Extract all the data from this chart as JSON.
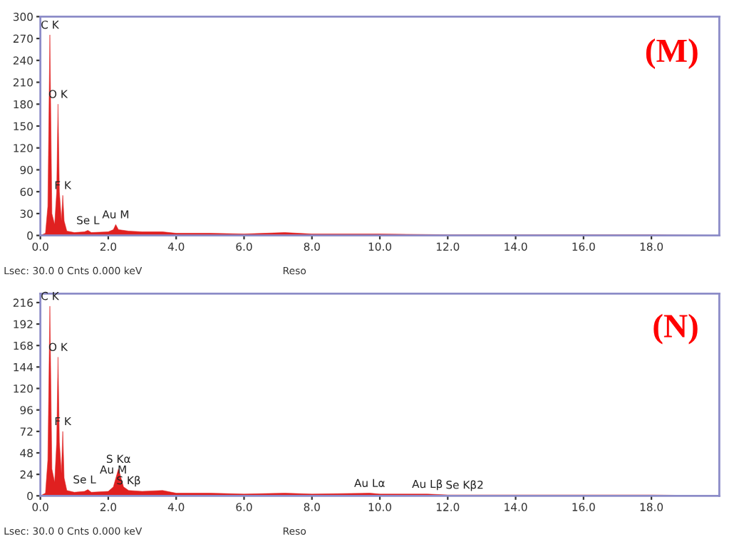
{
  "chart_data": [
    {
      "type": "area",
      "title": "(M)",
      "x": [
        0.0,
        0.15,
        0.22,
        0.28,
        0.34,
        0.42,
        0.48,
        0.52,
        0.56,
        0.62,
        0.66,
        0.7,
        0.78,
        1.0,
        1.3,
        1.4,
        1.5,
        2.0,
        2.15,
        2.22,
        2.3,
        2.6,
        3.0,
        3.6,
        4.0,
        5.0,
        6.0,
        7.2,
        8.0,
        10.0,
        12.0,
        14.0,
        16.0,
        18.0,
        20.0
      ],
      "series": [
        {
          "color": "#e02020",
          "values": [
            0,
            3,
            40,
            275,
            30,
            15,
            60,
            180,
            60,
            20,
            55,
            20,
            6,
            4,
            5,
            7,
            4,
            5,
            8,
            15,
            8,
            6,
            5,
            5,
            3,
            3,
            2,
            4,
            2,
            2,
            1,
            1,
            1,
            1,
            0
          ]
        }
      ],
      "xlim": [
        0,
        20
      ],
      "ylim": [
        0,
        300
      ],
      "xticks": [
        {
          "value": 0,
          "label": "0.0"
        },
        {
          "value": 2,
          "label": "2.0"
        },
        {
          "value": 4,
          "label": "4.0"
        },
        {
          "value": 6,
          "label": "6.0"
        },
        {
          "value": 8,
          "label": "8.0"
        },
        {
          "value": 10,
          "label": "10.0"
        },
        {
          "value": 12,
          "label": "12.0"
        },
        {
          "value": 14,
          "label": "14.0"
        },
        {
          "value": 16,
          "label": "16.0"
        },
        {
          "value": 18,
          "label": "18.0"
        }
      ],
      "yticks": [
        0,
        30,
        60,
        90,
        120,
        150,
        180,
        210,
        240,
        270,
        300
      ],
      "grid": false,
      "legend": false,
      "annotations": [
        {
          "text": "C K",
          "x": 0.28,
          "y": 275
        },
        {
          "text": "O K",
          "x": 0.52,
          "y": 180
        },
        {
          "text": "F K",
          "x": 0.66,
          "y": 55
        },
        {
          "text": "Se L",
          "x": 1.4,
          "y": 7
        },
        {
          "text": "Au M",
          "x": 2.22,
          "y": 15
        },
        "Lsec: 30.0 0 Cnts 0.000 keV",
        "Reso"
      ]
    },
    {
      "type": "area",
      "title": "(N)",
      "x": [
        0.0,
        0.15,
        0.22,
        0.28,
        0.34,
        0.42,
        0.48,
        0.52,
        0.56,
        0.62,
        0.66,
        0.7,
        0.78,
        1.0,
        1.3,
        1.4,
        1.5,
        2.0,
        2.15,
        2.3,
        2.45,
        2.6,
        3.0,
        3.6,
        4.0,
        5.0,
        6.0,
        7.2,
        8.0,
        9.7,
        10.0,
        11.4,
        12.0,
        12.5,
        14.0,
        16.0,
        18.0,
        20.0
      ],
      "series": [
        {
          "color": "#e02020",
          "values": [
            0,
            3,
            40,
            212,
            30,
            15,
            60,
            155,
            60,
            25,
            72,
            20,
            6,
            4,
            5,
            7,
            4,
            5,
            10,
            30,
            10,
            6,
            5,
            6,
            3,
            3,
            2,
            3,
            2,
            3,
            2,
            2,
            1,
            1,
            1,
            1,
            1,
            0
          ]
        }
      ],
      "xlim": [
        0,
        20
      ],
      "ylim": [
        0,
        226
      ],
      "xticks": [
        {
          "value": 0,
          "label": "0.0"
        },
        {
          "value": 2,
          "label": "2.0"
        },
        {
          "value": 4,
          "label": "4.0"
        },
        {
          "value": 6,
          "label": "6.0"
        },
        {
          "value": 8,
          "label": "8.0"
        },
        {
          "value": 10,
          "label": "10.0"
        },
        {
          "value": 12,
          "label": "12.0"
        },
        {
          "value": 14,
          "label": "14.0"
        },
        {
          "value": 16,
          "label": "16.0"
        },
        {
          "value": 18,
          "label": "18.0"
        }
      ],
      "yticks": [
        0,
        24,
        48,
        72,
        96,
        120,
        144,
        168,
        192,
        216
      ],
      "grid": false,
      "legend": false,
      "annotations": [
        {
          "text": "C K",
          "x": 0.28,
          "y": 212
        },
        {
          "text": "O K",
          "x": 0.52,
          "y": 155
        },
        {
          "text": "F K",
          "x": 0.66,
          "y": 72
        },
        {
          "text": "Se L",
          "x": 1.3,
          "y": 7
        },
        {
          "text": "S Kα",
          "x": 2.3,
          "y": 30
        },
        {
          "text": "Au M",
          "x": 2.15,
          "y": 18
        },
        {
          "text": "S Kβ",
          "x": 2.6,
          "y": 6
        },
        {
          "text": "Au Lα",
          "x": 9.7,
          "y": 3
        },
        {
          "text": "Au Lβ",
          "x": 11.4,
          "y": 2
        },
        {
          "text": "Se Kβ2",
          "x": 12.5,
          "y": 1
        },
        "Lsec: 30.0 0 Cnts 0.000 keV",
        "Reso"
      ]
    }
  ]
}
